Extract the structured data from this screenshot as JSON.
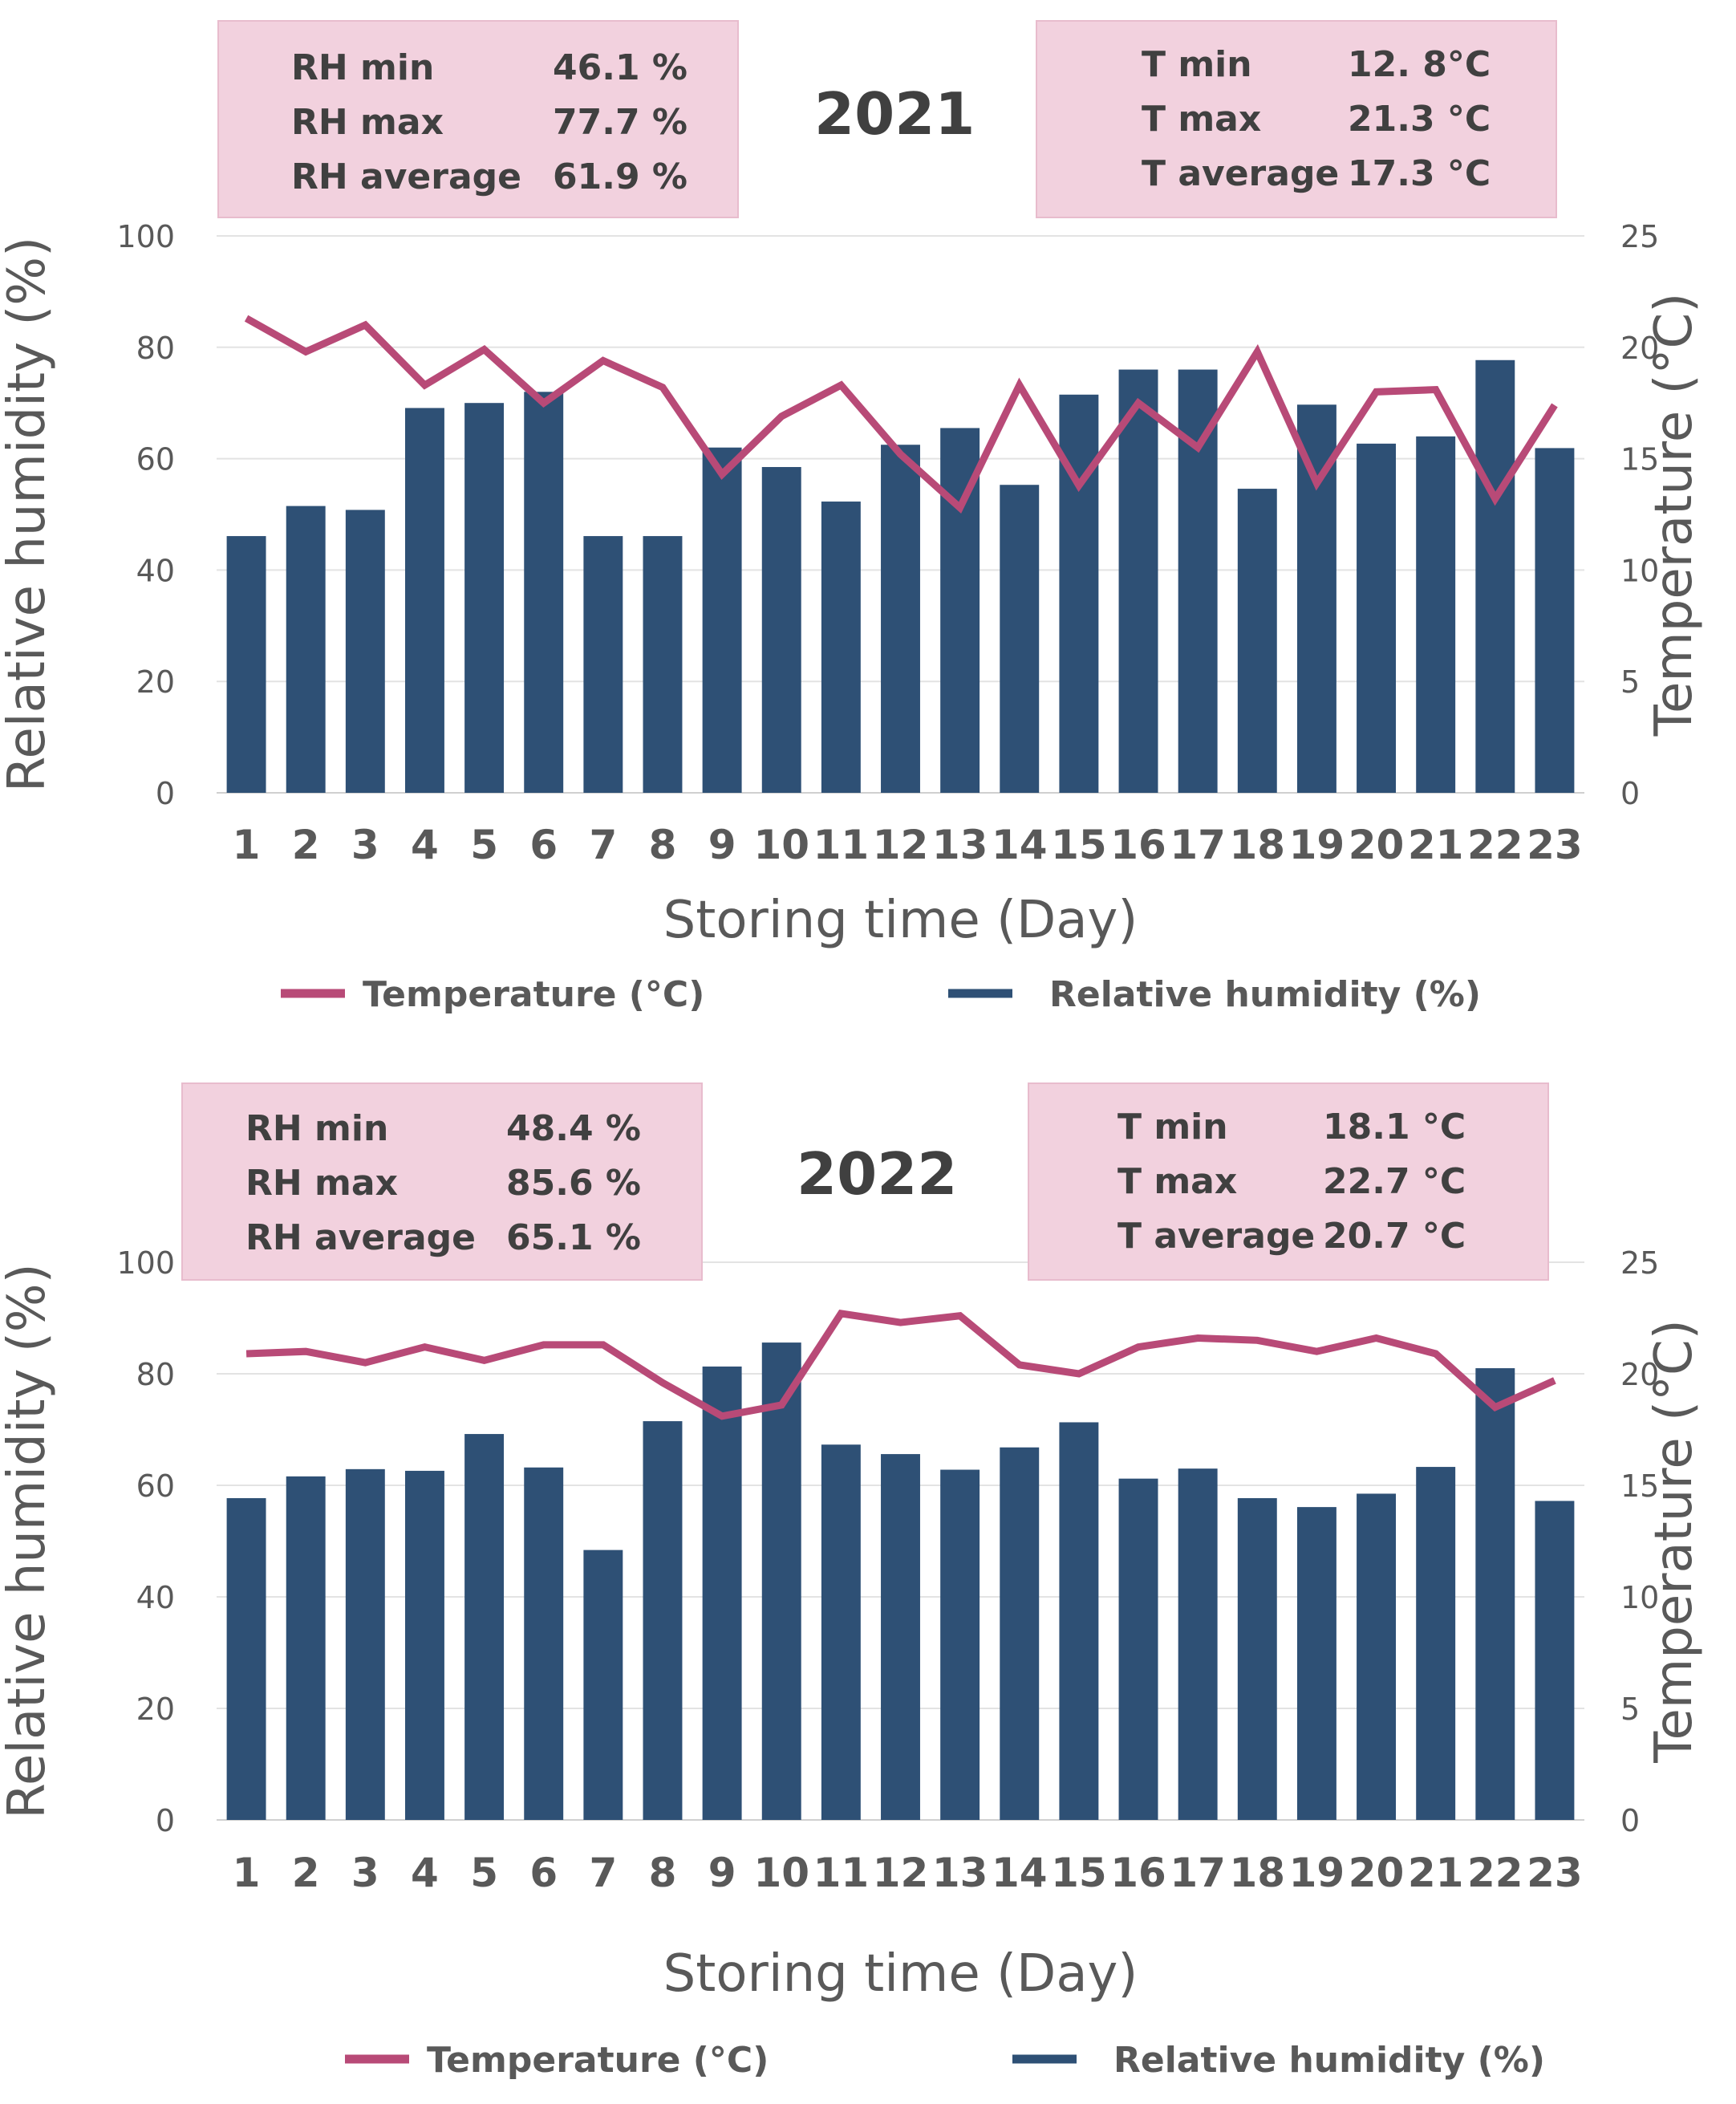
{
  "legend": {
    "temperature": "Temperature (°C)",
    "humidity": "Relative humidity (%)"
  },
  "colors": {
    "bar": "#2e5075",
    "line": "#b84a77",
    "grid": "#e3e3e3",
    "box": "#f2d1de",
    "text": "#595959"
  },
  "chart_data": [
    {
      "type": "bar",
      "title": "2021",
      "xlabel": "Storing time (Day)",
      "ylabel": "Relative humidity (%)",
      "y2label": "Temperature (°C)",
      "ylim": [
        0,
        100
      ],
      "y2lim": [
        0,
        25
      ],
      "yticks": [
        "0",
        "20",
        "40",
        "60",
        "80",
        "100"
      ],
      "y2ticks": [
        "0",
        "5",
        "10",
        "15",
        "20",
        "25"
      ],
      "categories": [
        "1",
        "2",
        "3",
        "4",
        "5",
        "6",
        "7",
        "8",
        "9",
        "10",
        "11",
        "12",
        "13",
        "14",
        "15",
        "16",
        "17",
        "18",
        "19",
        "20",
        "21",
        "22",
        "23"
      ],
      "series": [
        {
          "name": "Relative humidity (%)",
          "type": "bar",
          "axis": "left",
          "values": [
            46.1,
            51.5,
            50.8,
            69.1,
            70.0,
            72.0,
            46.1,
            46.1,
            62.0,
            58.5,
            52.3,
            62.5,
            65.5,
            55.3,
            71.5,
            76.0,
            76.0,
            54.6,
            69.7,
            62.7,
            64.0,
            77.7,
            61.9
          ]
        },
        {
          "name": "Temperature (°C)",
          "type": "line",
          "axis": "right",
          "values": [
            21.3,
            19.8,
            21.0,
            18.3,
            19.9,
            17.5,
            19.4,
            18.2,
            14.3,
            16.9,
            18.3,
            15.2,
            12.8,
            18.3,
            13.8,
            17.5,
            15.5,
            19.8,
            13.9,
            18.0,
            18.1,
            13.2,
            17.4
          ]
        }
      ],
      "summary": [
        {
          "label": "RH min",
          "value": "46.1 %"
        },
        {
          "label": "RH max",
          "value": "77.7 %"
        },
        {
          "label": "RH average",
          "value": "61.9 %"
        }
      ],
      "summary_t": [
        {
          "label": "T min",
          "value": "12. 8°C"
        },
        {
          "label": "T max",
          "value": "21.3 °C"
        },
        {
          "label": "T average",
          "value": "17.3 °C"
        }
      ]
    },
    {
      "type": "bar",
      "title": "2022",
      "xlabel": "Storing time (Day)",
      "ylabel": "Relative humidity (%)",
      "y2label": "Temperature (°C)",
      "ylim": [
        0,
        100
      ],
      "y2lim": [
        0,
        25
      ],
      "yticks": [
        "0",
        "20",
        "40",
        "60",
        "80",
        "100"
      ],
      "y2ticks": [
        "0",
        "5",
        "10",
        "15",
        "20",
        "25"
      ],
      "categories": [
        "1",
        "2",
        "3",
        "4",
        "5",
        "6",
        "7",
        "8",
        "9",
        "10",
        "11",
        "12",
        "13",
        "14",
        "15",
        "16",
        "17",
        "18",
        "19",
        "20",
        "21",
        "22",
        "23"
      ],
      "series": [
        {
          "name": "Relative humidity (%)",
          "type": "bar",
          "axis": "left",
          "values": [
            57.7,
            61.6,
            62.9,
            62.6,
            69.2,
            63.2,
            48.4,
            71.5,
            81.3,
            85.6,
            67.3,
            65.6,
            62.8,
            66.8,
            71.3,
            61.2,
            63.0,
            57.7,
            56.1,
            58.5,
            63.3,
            81.0,
            57.2
          ]
        },
        {
          "name": "Temperature (°C)",
          "type": "line",
          "axis": "right",
          "values": [
            20.9,
            21.0,
            20.5,
            21.2,
            20.6,
            21.3,
            21.3,
            19.6,
            18.1,
            18.6,
            22.7,
            22.3,
            22.6,
            20.4,
            20.0,
            21.2,
            21.6,
            21.5,
            21.0,
            21.6,
            20.9,
            18.5,
            19.7
          ]
        }
      ],
      "summary": [
        {
          "label": "RH min",
          "value": "48.4 %"
        },
        {
          "label": "RH max",
          "value": "85.6 %"
        },
        {
          "label": "RH average",
          "value": "65.1 %"
        }
      ],
      "summary_t": [
        {
          "label": "T min",
          "value": "18.1 °C"
        },
        {
          "label": "T max",
          "value": "22.7 °C"
        },
        {
          "label": "T average",
          "value": "20.7 °C"
        }
      ]
    }
  ]
}
